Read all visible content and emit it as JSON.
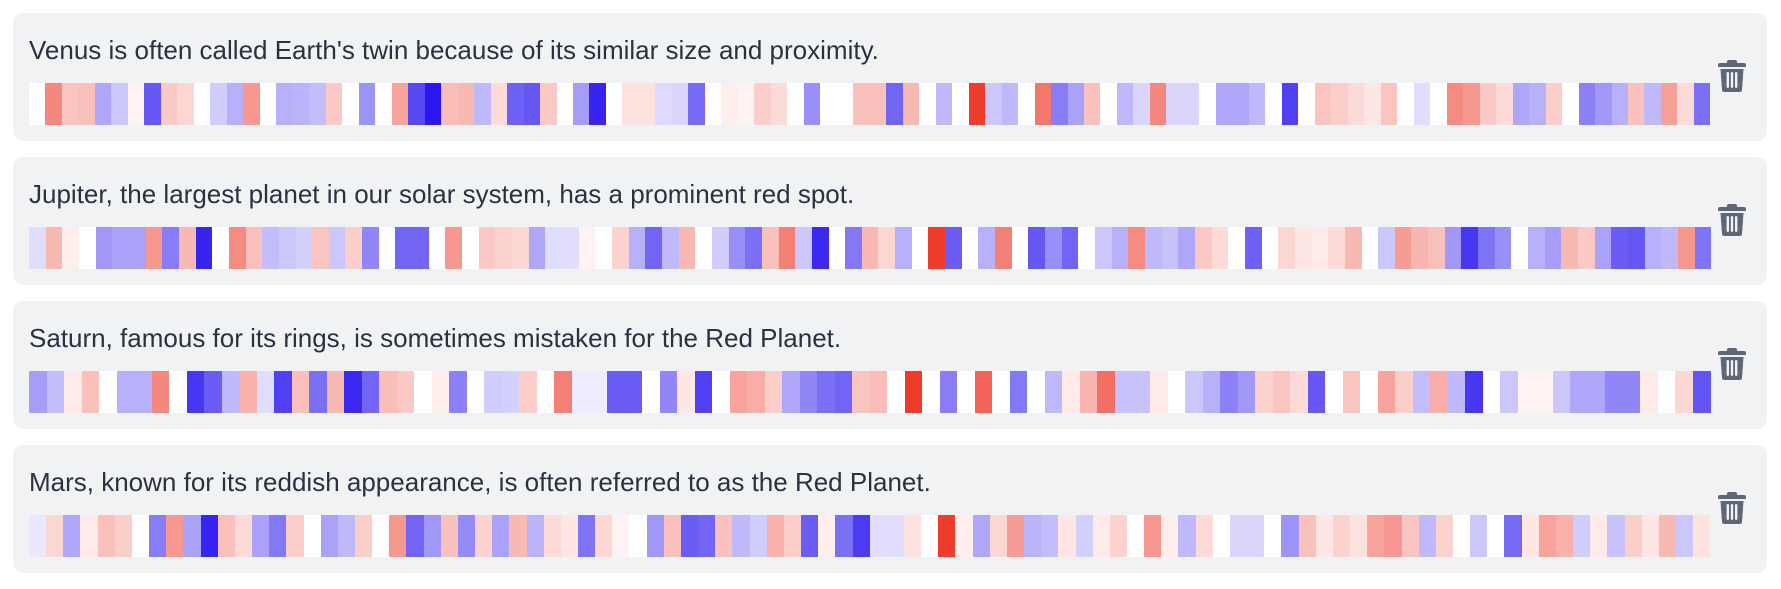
{
  "colors": {
    "card_background": "#f1f2f4",
    "text": "#2b3140",
    "trash_icon": "#5f6674",
    "heat_negative": "#2a16f0",
    "heat_neutral": "#ffffff",
    "heat_positive": "#ee3120"
  },
  "embeddings": [
    {
      "text": "Venus is often called Earth's twin because of its similar size and proximity.",
      "delete_icon": "trash-icon",
      "values": [
        0,
        0.58,
        0.28,
        0.3,
        -0.38,
        -0.24,
        0.06,
        -0.72,
        0.26,
        0.2,
        0,
        -0.22,
        -0.34,
        0.5,
        0,
        -0.34,
        -0.32,
        -0.28,
        0.26,
        0,
        -0.46,
        0,
        0.44,
        -0.78,
        -1.0,
        0.32,
        0.34,
        -0.3,
        0.18,
        -0.68,
        -0.72,
        0.26,
        0,
        -0.42,
        -0.94,
        0,
        0.14,
        0.14,
        -0.16,
        -0.18,
        -0.64,
        0,
        0.08,
        0.06,
        0.24,
        0.18,
        0,
        -0.48,
        0,
        0,
        0.3,
        0.3,
        -0.66,
        0.34,
        0,
        -0.3,
        0,
        0.94,
        -0.24,
        -0.3,
        0,
        0.66,
        -0.56,
        -0.4,
        0.3,
        0,
        -0.3,
        -0.18,
        0.58,
        -0.18,
        -0.18,
        0,
        -0.38,
        -0.38,
        -0.3,
        0,
        -0.82,
        0,
        0.28,
        0.24,
        0.18,
        0.12,
        0.28,
        0,
        -0.14,
        0,
        0.56,
        0.5,
        0.26,
        0.18,
        -0.38,
        -0.34,
        0.24,
        0,
        -0.54,
        -0.44,
        -0.34,
        0.3,
        -0.3,
        0.46,
        0.18,
        -0.62
      ]
    },
    {
      "text": "Jupiter, the largest planet in our solar system, has a prominent red spot.",
      "delete_icon": "trash-icon",
      "values": [
        -0.14,
        0.34,
        0.08,
        0,
        -0.44,
        -0.4,
        -0.4,
        0.5,
        -0.56,
        0.34,
        -0.94,
        0,
        0.56,
        0.3,
        -0.28,
        -0.24,
        -0.2,
        0.28,
        -0.24,
        0.24,
        -0.52,
        0,
        -0.66,
        -0.66,
        0,
        0.5,
        0,
        0.26,
        0.22,
        0.2,
        -0.38,
        -0.14,
        -0.14,
        0.06,
        0,
        0.22,
        -0.34,
        -0.66,
        -0.3,
        0.34,
        0,
        -0.22,
        -0.48,
        -0.62,
        0.3,
        0.62,
        -0.24,
        -0.92,
        0,
        -0.58,
        0.34,
        0.2,
        -0.34,
        0,
        0.94,
        -0.7,
        0,
        -0.34,
        0.62,
        0,
        -0.72,
        -0.48,
        -0.66,
        0,
        -0.24,
        -0.34,
        0.56,
        -0.3,
        -0.26,
        -0.38,
        0.26,
        0.18,
        0,
        -0.68,
        0,
        0.2,
        0.12,
        0.1,
        0.18,
        0.34,
        0,
        -0.24,
        0.48,
        0.36,
        0.3,
        -0.44,
        -0.86,
        -0.6,
        -0.48,
        0,
        -0.34,
        -0.42,
        0.34,
        0.26,
        -0.4,
        -0.7,
        -0.72,
        -0.34,
        -0.3,
        0.5,
        -0.6
      ]
    },
    {
      "text": "Saturn, famous for its rings, is sometimes mistaken for the Red Planet.",
      "delete_icon": "trash-icon",
      "values": [
        -0.42,
        -0.28,
        0.1,
        0.3,
        0,
        -0.34,
        -0.34,
        0.58,
        0,
        -0.86,
        -0.7,
        -0.3,
        0.38,
        -0.14,
        -0.82,
        0.3,
        -0.62,
        0.34,
        -0.92,
        -0.66,
        0.32,
        0.26,
        0,
        0.08,
        -0.54,
        0,
        -0.22,
        -0.2,
        0.24,
        0,
        0.62,
        -0.08,
        -0.08,
        -0.7,
        -0.7,
        0,
        -0.52,
        0.12,
        -0.82,
        0,
        0.44,
        0.4,
        0.24,
        -0.38,
        -0.52,
        -0.62,
        -0.66,
        0.28,
        0.32,
        0,
        0.96,
        0,
        -0.56,
        0,
        0.76,
        0,
        -0.58,
        0,
        -0.3,
        0.1,
        0.36,
        0.7,
        -0.26,
        -0.26,
        0.1,
        0,
        -0.24,
        -0.34,
        -0.54,
        -0.44,
        0.22,
        0.28,
        0.18,
        -0.72,
        0,
        0.28,
        0,
        0.44,
        0.24,
        -0.28,
        0.4,
        -0.3,
        -0.86,
        0,
        -0.24,
        0.06,
        0.06,
        -0.24,
        -0.38,
        -0.38,
        -0.52,
        -0.52,
        0.1,
        0,
        0.2,
        -0.74
      ]
    },
    {
      "text": "Mars, known for its reddish appearance, is often referred to as the Red Planet.",
      "delete_icon": "trash-icon",
      "values": [
        -0.1,
        0.2,
        -0.38,
        0.1,
        0.3,
        0.24,
        0,
        -0.56,
        0.5,
        -0.4,
        -0.94,
        0.3,
        0.18,
        -0.4,
        -0.58,
        0.24,
        0,
        -0.4,
        -0.3,
        0.24,
        0,
        0.5,
        -0.66,
        -0.44,
        0.3,
        -0.5,
        0.22,
        -0.4,
        0.34,
        -0.32,
        0.18,
        0.12,
        -0.6,
        0.2,
        0.06,
        0,
        -0.44,
        0.3,
        -0.7,
        -0.66,
        0.3,
        -0.3,
        -0.22,
        0.38,
        0.24,
        -0.7,
        0.08,
        -0.62,
        -0.84,
        -0.14,
        -0.14,
        0.14,
        0,
        0.94,
        0.08,
        -0.38,
        0.2,
        0.48,
        -0.32,
        -0.28,
        0.12,
        -0.2,
        0.1,
        0.22,
        0,
        0.5,
        0.08,
        -0.3,
        0.18,
        0,
        -0.18,
        -0.18,
        0,
        -0.46,
        0.3,
        0.12,
        0.22,
        0.14,
        0.44,
        0.5,
        0.28,
        -0.3,
        0.22,
        0,
        -0.24,
        0,
        -0.64,
        0.12,
        0.44,
        0.38,
        -0.22,
        0.1,
        -0.26,
        0.24,
        0.12,
        0.34,
        -0.24,
        0.14
      ]
    }
  ]
}
